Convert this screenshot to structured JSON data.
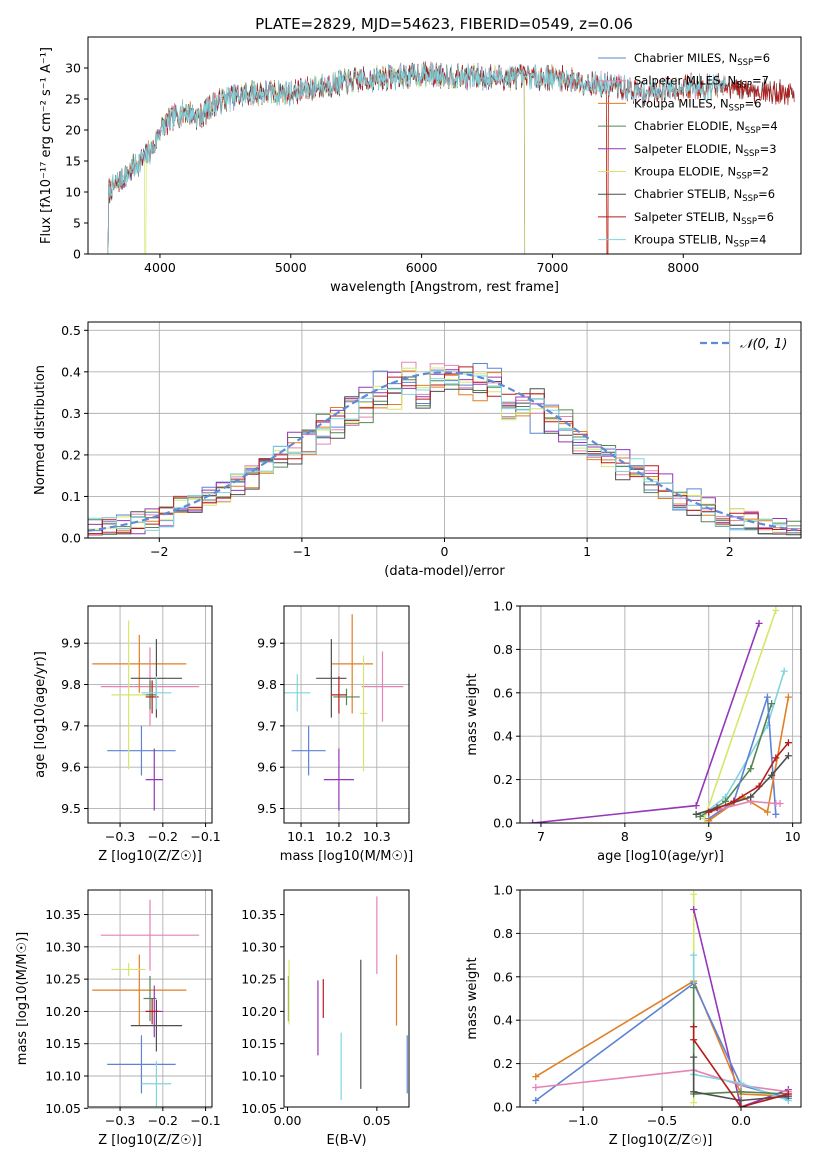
{
  "figure": {
    "title": "PLATE=2829, MJD=54623, FIBERID=0549, z=0.06"
  },
  "colors": {
    "Chabrier MILES": "#5d83d6",
    "Salpeter MILES": "#e583b5",
    "Kroupa MILES": "#e07f25",
    "Chabrier ELODIE": "#538653",
    "Salpeter ELODIE": "#9636ba",
    "Kroupa ELODIE": "#d6e66b",
    "Chabrier STELIB": "#4f4f4f",
    "Salpeter STELIB": "#b71c1c",
    "Kroupa STELIB": "#7fd4de"
  },
  "chart_data": [
    {
      "id": "spectrum",
      "type": "line",
      "xlabel": "wavelength [Angstrom, rest frame]",
      "ylabel": "Flux [fλ10⁻¹⁷ erg cm⁻² s⁻¹ A⁻¹]",
      "xlim": [
        3450,
        8900
      ],
      "ylim": [
        0,
        35
      ],
      "xticks": [
        4000,
        5000,
        6000,
        7000,
        8000
      ],
      "yticks": [
        0,
        5,
        10,
        15,
        20,
        25,
        30
      ],
      "grid": false,
      "legend_position": "top-right",
      "legend": [
        {
          "model": "Chabrier MILES",
          "text": "Chabrier MILES, N",
          "sub": "SSP",
          "n": "=6"
        },
        {
          "model": "Salpeter MILES",
          "text": "Salpeter MILES, N",
          "sub": "SSP",
          "n": "=7"
        },
        {
          "model": "Kroupa MILES",
          "text": "Kroupa MILES, N",
          "sub": "SSP",
          "n": "=6"
        },
        {
          "model": "Chabrier ELODIE",
          "text": "Chabrier ELODIE, N",
          "sub": "SSP",
          "n": "=4"
        },
        {
          "model": "Salpeter ELODIE",
          "text": "Salpeter ELODIE, N",
          "sub": "SSP",
          "n": "=3"
        },
        {
          "model": "Kroupa ELODIE",
          "text": "Kroupa ELODIE, N",
          "sub": "SSP",
          "n": "=2"
        },
        {
          "model": "Chabrier STELIB",
          "text": "Chabrier STELIB, N",
          "sub": "SSP",
          "n": "=6"
        },
        {
          "model": "Salpeter STELIB",
          "text": "Salpeter STELIB, N",
          "sub": "SSP",
          "n": "=6"
        },
        {
          "model": "Kroupa STELIB",
          "text": "Kroupa STELIB, N",
          "sub": "SSP",
          "n": "=4"
        }
      ],
      "continuum_x": [
        3600,
        3700,
        3800,
        3900,
        3950,
        4000,
        4100,
        4200,
        4300,
        4400,
        4500,
        4700,
        5000,
        5200,
        5500,
        6000,
        6500,
        7000,
        7300,
        7500,
        7700,
        8000,
        8300,
        8500,
        8700
      ],
      "continuum_y": [
        10,
        12,
        14,
        16,
        17,
        20,
        22,
        23,
        22,
        24,
        25,
        26,
        26,
        27,
        28,
        29,
        28.5,
        28.5,
        27.5,
        27,
        26,
        27,
        27,
        26.5,
        26
      ],
      "series": [
        {
          "model": "Chabrier MILES",
          "xrange": [
            3600,
            8320
          ]
        },
        {
          "model": "Salpeter MILES",
          "xrange": [
            3600,
            8320
          ]
        },
        {
          "model": "Kroupa MILES",
          "xrange": [
            3600,
            8320
          ],
          "drop_at": 7420
        },
        {
          "model": "Chabrier ELODIE",
          "xrange": [
            3600,
            6790
          ],
          "drop_at": 6790
        },
        {
          "model": "Salpeter ELODIE",
          "xrange": [
            3600,
            6790
          ],
          "drop_at": 6790
        },
        {
          "model": "Kroupa ELODIE",
          "xrange": [
            3600,
            6790
          ],
          "drop_at": 6790
        },
        {
          "model": "Chabrier STELIB",
          "xrange": [
            3600,
            8850
          ]
        },
        {
          "model": "Salpeter STELIB",
          "xrange": [
            3600,
            8850
          ],
          "drop_at": 7420
        },
        {
          "model": "Kroupa STELIB",
          "xrange": [
            3600,
            8320
          ]
        }
      ]
    },
    {
      "id": "residuals",
      "type": "histogram",
      "xlabel": "(data-model)/error",
      "ylabel": "Normed distribution",
      "xlim": [
        -2.5,
        2.5
      ],
      "ylim": [
        0,
        0.52
      ],
      "xticks": [
        -2,
        -1,
        0,
        1,
        2
      ],
      "yticks": [
        0.0,
        0.1,
        0.2,
        0.3,
        0.4,
        0.5
      ],
      "grid": true,
      "legend_position": "top-right",
      "reference_curve": {
        "name": "N(0,1)",
        "mean": 0,
        "sigma": 1,
        "color": "#5d8bd6"
      },
      "bin_width": 0.1,
      "bin_start": -2.5
    },
    {
      "id": "age-vs-Z",
      "type": "errorbar",
      "xlabel": "Z [log10(Z/Z☉)]",
      "ylabel": "age [log10(age/yr)]",
      "xlim": [
        -0.375,
        -0.085
      ],
      "ylim": [
        9.465,
        9.99
      ],
      "xticks": [
        -0.3,
        -0.2,
        -0.1
      ],
      "yticks": [
        9.5,
        9.6,
        9.7,
        9.8,
        9.9
      ],
      "grid": true,
      "points": [
        {
          "model": "Chabrier MILES",
          "x": -0.25,
          "xerr": 0.08,
          "y": 9.64,
          "yerr": 0.06
        },
        {
          "model": "Salpeter MILES",
          "x": -0.23,
          "xerr": 0.115,
          "y": 9.795,
          "yerr": 0.095
        },
        {
          "model": "Kroupa MILES",
          "x": -0.255,
          "xerr": 0.11,
          "y": 9.85,
          "yerr": 0.07
        },
        {
          "model": "Chabrier ELODIE",
          "x": -0.23,
          "xerr": 0.015,
          "y": 9.775,
          "yerr": 0.035
        },
        {
          "model": "Salpeter ELODIE",
          "x": -0.22,
          "xerr": 0.02,
          "y": 9.57,
          "yerr": 0.075
        },
        {
          "model": "Kroupa ELODIE",
          "x": -0.28,
          "xerr": 0.04,
          "y": 9.775,
          "yerr": 0.18
        },
        {
          "model": "Chabrier STELIB",
          "x": -0.215,
          "xerr": 0.06,
          "y": 9.815,
          "yerr": 0.095
        },
        {
          "model": "Salpeter STELIB",
          "x": -0.225,
          "xerr": 0.015,
          "y": 9.77,
          "yerr": 0.04
        },
        {
          "model": "Kroupa STELIB",
          "x": -0.215,
          "xerr": 0.035,
          "y": 9.78,
          "yerr": 0.04
        }
      ]
    },
    {
      "id": "age-vs-mass",
      "type": "errorbar",
      "xlabel": "mass [log10(M/M☉)]",
      "ylabel": "",
      "xlim": [
        10.055,
        10.385
      ],
      "ylim": [
        9.465,
        9.99
      ],
      "xticks": [
        10.1,
        10.2,
        10.3
      ],
      "yticks": [
        9.5,
        9.6,
        9.7,
        9.8,
        9.9
      ],
      "grid": true,
      "points": [
        {
          "model": "Chabrier MILES",
          "x": 10.12,
          "xerr": 0.045,
          "y": 9.64,
          "yerr": 0.06
        },
        {
          "model": "Salpeter MILES",
          "x": 10.315,
          "xerr": 0.055,
          "y": 9.795,
          "yerr": 0.085
        },
        {
          "model": "Kroupa MILES",
          "x": 10.235,
          "xerr": 0.055,
          "y": 9.85,
          "yerr": 0.12
        },
        {
          "model": "Chabrier ELODIE",
          "x": 10.22,
          "xerr": 0.035,
          "y": 9.77,
          "yerr": 0.02
        },
        {
          "model": "Salpeter ELODIE",
          "x": 10.2,
          "xerr": 0.04,
          "y": 9.57,
          "yerr": 0.075
        },
        {
          "model": "Kroupa ELODIE",
          "x": 10.265,
          "xerr": 0.01,
          "y": 9.73,
          "yerr": 0.14
        },
        {
          "model": "Chabrier STELIB",
          "x": 10.18,
          "xerr": 0.04,
          "y": 9.815,
          "yerr": 0.095
        },
        {
          "model": "Salpeter STELIB",
          "x": 10.2,
          "xerr": 0.02,
          "y": 9.775,
          "yerr": 0.045
        },
        {
          "model": "Kroupa STELIB",
          "x": 10.09,
          "xerr": 0.035,
          "y": 9.78,
          "yerr": 0.045
        }
      ]
    },
    {
      "id": "weight-vs-age",
      "type": "line",
      "xlabel": "age [log10(age/yr)]",
      "ylabel": "mass weight",
      "xlim": [
        6.75,
        10.1
      ],
      "ylim": [
        0,
        1.0
      ],
      "xticks": [
        7,
        8,
        9,
        10
      ],
      "yticks": [
        0.0,
        0.2,
        0.4,
        0.6,
        0.8,
        1.0
      ],
      "grid": true,
      "series": [
        {
          "model": "Salpeter ELODIE",
          "x": [
            6.9,
            8.85,
            9.6
          ],
          "y": [
            0.0,
            0.08,
            0.92
          ]
        },
        {
          "model": "Kroupa ELODIE",
          "x": [
            8.95,
            9.8
          ],
          "y": [
            0.02,
            0.98
          ]
        },
        {
          "model": "Kroupa STELIB",
          "x": [
            8.9,
            9.2,
            9.7,
            9.9
          ],
          "y": [
            0.03,
            0.12,
            0.45,
            0.7
          ]
        },
        {
          "model": "Chabrier ELODIE",
          "x": [
            8.9,
            9.2,
            9.5,
            9.75
          ],
          "y": [
            0.03,
            0.1,
            0.25,
            0.55
          ]
        },
        {
          "model": "Chabrier MILES",
          "x": [
            9.0,
            9.3,
            9.7,
            9.8
          ],
          "y": [
            0.02,
            0.1,
            0.58,
            0.04
          ]
        },
        {
          "model": "Kroupa MILES",
          "x": [
            9.0,
            9.4,
            9.7,
            9.95
          ],
          "y": [
            0.01,
            0.12,
            0.05,
            0.58
          ]
        },
        {
          "model": "Salpeter MILES",
          "x": [
            9.0,
            9.5,
            9.8,
            9.85
          ],
          "y": [
            0.05,
            0.1,
            0.09,
            0.09
          ]
        },
        {
          "model": "Chabrier STELIB",
          "x": [
            8.85,
            9.1,
            9.5,
            9.75,
            9.95
          ],
          "y": [
            0.04,
            0.07,
            0.12,
            0.22,
            0.31
          ]
        },
        {
          "model": "Salpeter STELIB",
          "x": [
            9.0,
            9.3,
            9.6,
            9.8,
            9.95
          ],
          "y": [
            0.05,
            0.1,
            0.17,
            0.3,
            0.37
          ]
        }
      ]
    },
    {
      "id": "mass-vs-Z",
      "type": "errorbar",
      "xlabel": "Z [log10(Z/Z☉)]",
      "ylabel": "mass [log10(M/M☉)]",
      "xlim": [
        -0.375,
        -0.085
      ],
      "ylim": [
        10.052,
        10.388
      ],
      "xticks": [
        -0.3,
        -0.2,
        -0.1
      ],
      "yticks": [
        10.05,
        10.1,
        10.15,
        10.2,
        10.25,
        10.3,
        10.35
      ],
      "grid": true,
      "points": [
        {
          "model": "Chabrier MILES",
          "x": -0.25,
          "xerr": 0.08,
          "y": 10.118,
          "yerr": 0.045
        },
        {
          "model": "Salpeter MILES",
          "x": -0.23,
          "xerr": 0.115,
          "y": 10.318,
          "yerr": 0.055
        },
        {
          "model": "Kroupa MILES",
          "x": -0.255,
          "xerr": 0.11,
          "y": 10.233,
          "yerr": 0.055
        },
        {
          "model": "Chabrier ELODIE",
          "x": -0.23,
          "xerr": 0.015,
          "y": 10.22,
          "yerr": 0.035
        },
        {
          "model": "Salpeter ELODIE",
          "x": -0.22,
          "xerr": 0.02,
          "y": 10.2,
          "yerr": 0.04
        },
        {
          "model": "Kroupa ELODIE",
          "x": -0.28,
          "xerr": 0.04,
          "y": 10.265,
          "yerr": 0.01
        },
        {
          "model": "Chabrier STELIB",
          "x": -0.215,
          "xerr": 0.06,
          "y": 10.178,
          "yerr": 0.04
        },
        {
          "model": "Salpeter STELIB",
          "x": -0.225,
          "xerr": 0.015,
          "y": 10.2,
          "yerr": 0.02
        },
        {
          "model": "Kroupa STELIB",
          "x": -0.215,
          "xerr": 0.035,
          "y": 10.088,
          "yerr": 0.035
        }
      ]
    },
    {
      "id": "mass-vs-EBV",
      "type": "errorbar",
      "xlabel": "E(B-V)",
      "ylabel": "",
      "xlim": [
        -0.002,
        0.068
      ],
      "ylim": [
        10.052,
        10.388
      ],
      "xticks": [
        0.0,
        0.05
      ],
      "yticks": [
        10.05,
        10.1,
        10.15,
        10.2,
        10.25,
        10.3,
        10.35
      ],
      "grid": false,
      "points": [
        {
          "model": "Chabrier MILES",
          "x": 0.067,
          "y": 10.118,
          "yerr": 0.045
        },
        {
          "model": "Salpeter MILES",
          "x": 0.05,
          "y": 10.318,
          "yerr": 0.06
        },
        {
          "model": "Kroupa MILES",
          "x": 0.061,
          "y": 10.233,
          "yerr": 0.055
        },
        {
          "model": "Chabrier ELODIE",
          "x": 0.0005,
          "y": 10.22,
          "yerr": 0.035
        },
        {
          "model": "Salpeter ELODIE",
          "x": 0.017,
          "y": 10.19,
          "yerr": 0.058
        },
        {
          "model": "Kroupa ELODIE",
          "x": 0.0008,
          "y": 10.23,
          "yerr": 0.05
        },
        {
          "model": "Chabrier STELIB",
          "x": 0.041,
          "y": 10.18,
          "yerr": 0.1
        },
        {
          "model": "Salpeter STELIB",
          "x": 0.02,
          "y": 10.22,
          "yerr": 0.03
        },
        {
          "model": "Kroupa STELIB",
          "x": 0.03,
          "y": 10.115,
          "yerr": 0.052
        }
      ]
    },
    {
      "id": "weight-vs-Z",
      "type": "line",
      "xlabel": "Z [log10(Z/Z☉)]",
      "ylabel": "mass weight",
      "xlim": [
        -1.4,
        0.38
      ],
      "ylim": [
        0,
        1.0
      ],
      "xticks": [
        -1.0,
        -0.5,
        0.0
      ],
      "yticks": [
        0.0,
        0.2,
        0.4,
        0.6,
        0.8,
        1.0
      ],
      "grid": true,
      "series": [
        {
          "model": "Kroupa ELODIE",
          "x": [
            -0.3,
            -0.3
          ],
          "y": [
            0.02,
            0.98
          ]
        },
        {
          "model": "Salpeter ELODIE",
          "x": [
            -0.3,
            0.0,
            0.3
          ],
          "y": [
            0.91,
            0.0,
            0.08
          ]
        },
        {
          "model": "Kroupa MILES",
          "x": [
            -1.3,
            -0.3,
            0.0,
            0.3
          ],
          "y": [
            0.14,
            0.58,
            0.06,
            0.05
          ]
        },
        {
          "model": "Chabrier MILES",
          "x": [
            -1.3,
            -0.3,
            0.0,
            0.3
          ],
          "y": [
            0.03,
            0.57,
            0.1,
            0.04
          ]
        },
        {
          "model": "Salpeter MILES",
          "x": [
            -1.3,
            -0.3,
            0.0,
            0.3
          ],
          "y": [
            0.09,
            0.17,
            0.1,
            0.07
          ]
        },
        {
          "model": "Kroupa STELIB",
          "x": [
            -0.3,
            -0.3,
            0.0,
            0.3
          ],
          "y": [
            0.7,
            0.15,
            0.11,
            0.03
          ]
        },
        {
          "model": "Chabrier ELODIE",
          "x": [
            -0.3,
            -0.3,
            0.0,
            0.3
          ],
          "y": [
            0.55,
            0.06,
            0.07,
            0.06
          ]
        },
        {
          "model": "Chabrier STELIB",
          "x": [
            -0.3,
            -0.3,
            0.0,
            0.3
          ],
          "y": [
            0.23,
            0.07,
            0.03,
            0.05
          ]
        },
        {
          "model": "Salpeter STELIB",
          "x": [
            -0.3,
            -0.3,
            0.0,
            0.3
          ],
          "y": [
            0.37,
            0.31,
            0.0,
            0.06
          ]
        }
      ]
    }
  ]
}
